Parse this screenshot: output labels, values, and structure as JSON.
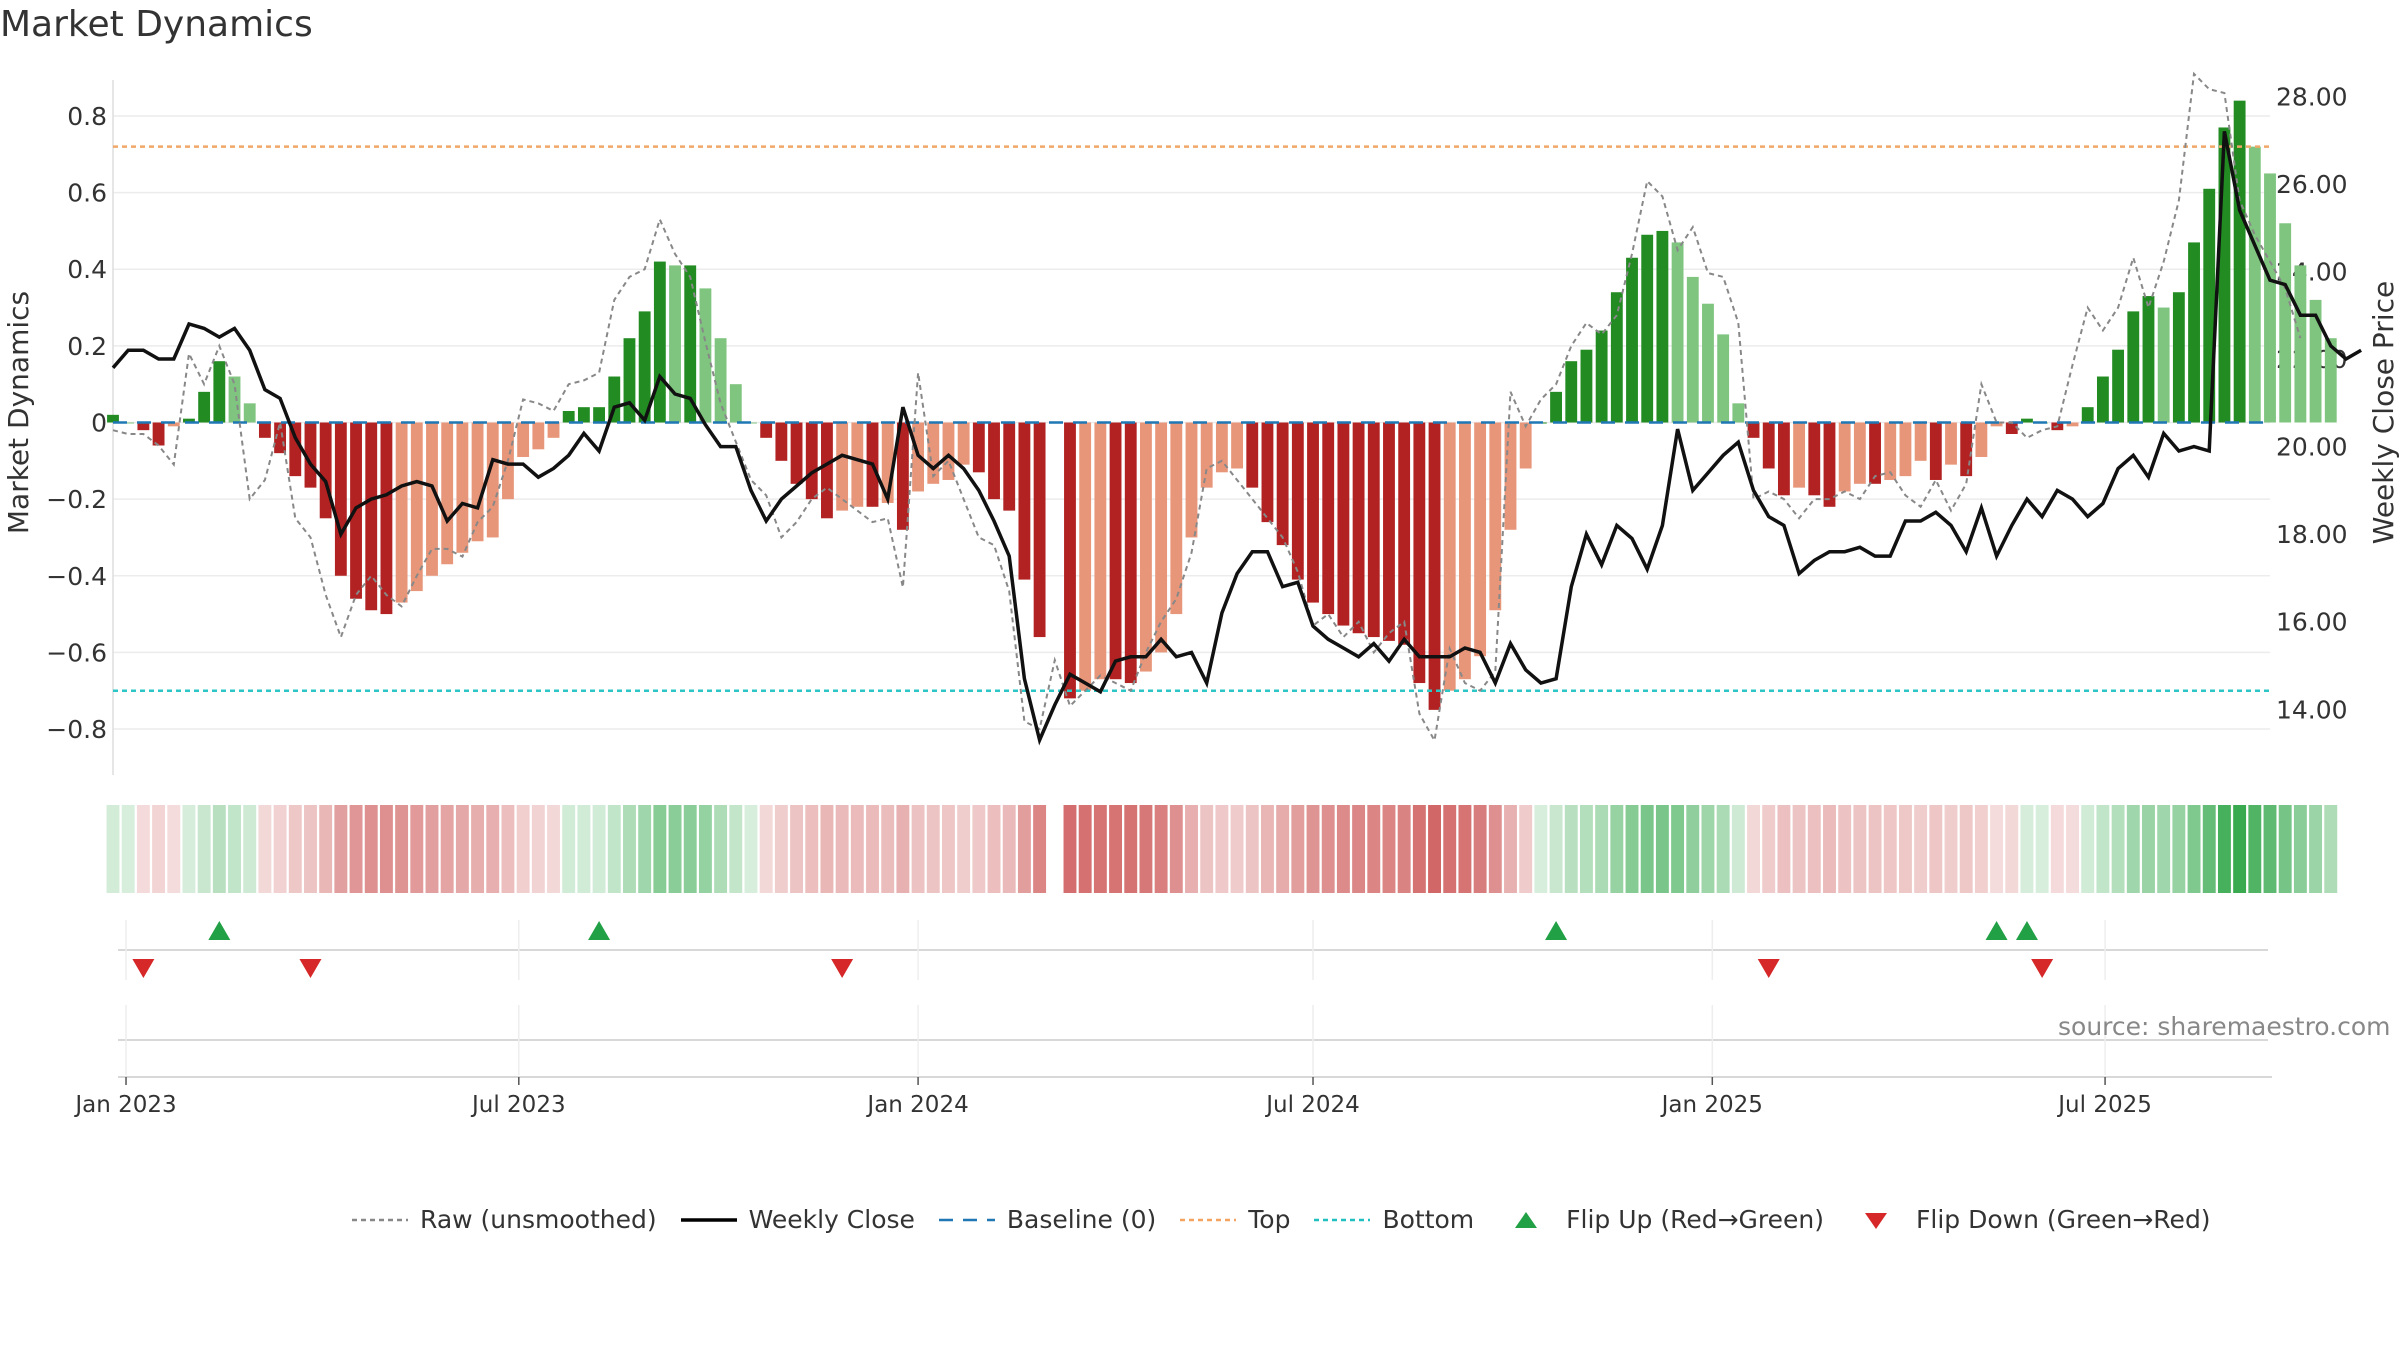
{
  "title": "Market Dynamics",
  "source": "source: sharemaestro.com",
  "axes": {
    "y_left_label": "Market Dynamics",
    "y_right_label": "Weekly Close Price",
    "y_left_ticks": [
      "0.8",
      "0.6",
      "0.4",
      "0.2",
      "0",
      "−0.2",
      "−0.4",
      "−0.6",
      "−0.8"
    ],
    "y_right_ticks": [
      "28.00",
      "26.00",
      "24.00",
      "22.00",
      "20.00",
      "18.00",
      "16.00",
      "14.00"
    ],
    "x_ticks": [
      "Jan 2023",
      "Jul 2023",
      "Jan 2024",
      "Jul 2024",
      "Jan 2025",
      "Jul 2025"
    ]
  },
  "legend": [
    {
      "label": "Raw (unsmoothed)",
      "style": "dotted",
      "color": "#888888"
    },
    {
      "label": "Weekly Close",
      "style": "solid",
      "color": "#000000"
    },
    {
      "label": "Baseline (0)",
      "style": "dashed",
      "color": "#1f77b4"
    },
    {
      "label": "Top",
      "style": "dotted",
      "color": "#f4a460"
    },
    {
      "label": "Bottom",
      "style": "dotted",
      "color": "#20c0c0"
    },
    {
      "label": "Flip Up (Red→Green)",
      "style": "tri-up",
      "color": "#22a045"
    },
    {
      "label": "Flip Down (Green→Red)",
      "style": "tri-down",
      "color": "#d62828"
    }
  ],
  "chart_data": {
    "type": "bar",
    "xlim": [
      "2022-12-26",
      "2025-09-15"
    ],
    "ylim_left": [
      -0.92,
      0.92
    ],
    "ylim_right": [
      12.5,
      28.6
    ],
    "top_line": 0.72,
    "bottom_line": -0.7,
    "baseline": 0,
    "colors": {
      "strong_green": "#228b22",
      "light_green": "#7fc47f",
      "strong_red": "#b22222",
      "light_red": "#e8967a"
    },
    "series": [
      {
        "name": "Market Dynamics",
        "start": "2022-12-26",
        "interval_days": 7,
        "values": [
          0.02,
          0.0,
          -0.02,
          -0.06,
          -0.01,
          0.01,
          0.08,
          0.16,
          0.12,
          0.05,
          -0.04,
          -0.08,
          -0.14,
          -0.17,
          -0.25,
          -0.4,
          -0.46,
          -0.49,
          -0.5,
          -0.47,
          -0.44,
          -0.4,
          -0.37,
          -0.34,
          -0.31,
          -0.3,
          -0.2,
          -0.09,
          -0.07,
          -0.04,
          0.03,
          0.04,
          0.04,
          0.12,
          0.22,
          0.29,
          0.42,
          0.41,
          0.41,
          0.35,
          0.22,
          0.1,
          0.0,
          -0.04,
          -0.1,
          -0.16,
          -0.2,
          -0.25,
          -0.23,
          -0.22,
          -0.22,
          -0.21,
          -0.28,
          -0.18,
          -0.16,
          -0.15,
          -0.11,
          -0.13,
          -0.2,
          -0.23,
          -0.41,
          -0.56,
          null,
          -0.72,
          -0.7,
          -0.67,
          -0.67,
          -0.68,
          -0.65,
          -0.6,
          -0.5,
          -0.3,
          -0.17,
          -0.13,
          -0.12,
          -0.17,
          -0.26,
          -0.32,
          -0.41,
          -0.47,
          -0.5,
          -0.53,
          -0.55,
          -0.56,
          -0.57,
          -0.58,
          -0.68,
          -0.75,
          -0.7,
          -0.67,
          -0.61,
          -0.49,
          -0.28,
          -0.12,
          0.0,
          0.08,
          0.16,
          0.19,
          0.24,
          0.34,
          0.43,
          0.49,
          0.5,
          0.47,
          0.38,
          0.31,
          0.23,
          0.05,
          -0.04,
          -0.12,
          -0.19,
          -0.17,
          -0.19,
          -0.22,
          -0.18,
          -0.16,
          -0.16,
          -0.15,
          -0.14,
          -0.1,
          -0.15,
          -0.11,
          -0.14,
          -0.09,
          -0.01,
          -0.03,
          0.01,
          0.0,
          -0.02,
          -0.01,
          0.04,
          0.12,
          0.19,
          0.29,
          0.33,
          0.3,
          0.34,
          0.47,
          0.61,
          0.77,
          0.84,
          0.72,
          0.65,
          0.52,
          0.41,
          0.32,
          0.22
        ]
      },
      {
        "name": "Raw (unsmoothed)",
        "start": "2022-12-26",
        "interval_days": 7,
        "values": [
          -0.02,
          -0.03,
          -0.03,
          -0.06,
          -0.11,
          0.18,
          0.1,
          0.2,
          0.1,
          -0.2,
          -0.15,
          0.0,
          -0.25,
          -0.3,
          -0.45,
          -0.56,
          -0.45,
          -0.4,
          -0.45,
          -0.48,
          -0.4,
          -0.33,
          -0.33,
          -0.35,
          -0.26,
          -0.22,
          -0.1,
          0.06,
          0.05,
          0.03,
          0.1,
          0.11,
          0.13,
          0.32,
          0.38,
          0.4,
          0.53,
          0.44,
          0.38,
          0.21,
          0.05,
          -0.05,
          -0.15,
          -0.19,
          -0.3,
          -0.26,
          -0.2,
          -0.17,
          -0.2,
          -0.23,
          -0.26,
          -0.25,
          -0.43,
          0.13,
          -0.14,
          -0.1,
          -0.2,
          -0.3,
          -0.32,
          -0.44,
          -0.78,
          -0.8,
          -0.62,
          -0.74,
          -0.7,
          -0.66,
          -0.68,
          -0.7,
          -0.6,
          -0.52,
          -0.46,
          -0.34,
          -0.12,
          -0.1,
          -0.15,
          -0.2,
          -0.25,
          -0.3,
          -0.39,
          -0.53,
          -0.5,
          -0.56,
          -0.52,
          -0.6,
          -0.55,
          -0.52,
          -0.76,
          -0.83,
          -0.59,
          -0.68,
          -0.7,
          -0.65,
          0.08,
          -0.01,
          0.06,
          0.1,
          0.2,
          0.26,
          0.23,
          0.28,
          0.44,
          0.63,
          0.59,
          0.45,
          0.51,
          0.39,
          0.38,
          0.26,
          -0.2,
          -0.18,
          -0.2,
          -0.25,
          -0.2,
          -0.2,
          -0.18,
          -0.2,
          -0.14,
          -0.13,
          -0.19,
          -0.22,
          -0.15,
          -0.23,
          -0.16,
          0.1,
          0.0,
          0.0,
          -0.04,
          -0.02,
          -0.01,
          0.15,
          0.3,
          0.24,
          0.3,
          0.43,
          0.3,
          0.42,
          0.58,
          0.91,
          0.87,
          0.86,
          0.58,
          0.49,
          0.42,
          0.35,
          0.22
        ]
      },
      {
        "name": "Weekly Close",
        "axis": "right",
        "start": "2022-12-26",
        "interval_days": 7,
        "values": [
          21.8,
          22.2,
          22.2,
          22.0,
          22.0,
          22.8,
          22.7,
          22.5,
          22.7,
          22.2,
          21.3,
          21.1,
          20.2,
          19.6,
          19.2,
          18.0,
          18.6,
          18.8,
          18.9,
          19.1,
          19.2,
          19.1,
          18.3,
          18.7,
          18.6,
          19.7,
          19.6,
          19.6,
          19.3,
          19.5,
          19.8,
          20.3,
          19.9,
          20.9,
          21.0,
          20.6,
          21.6,
          21.2,
          21.1,
          20.5,
          20.0,
          20.0,
          19.0,
          18.3,
          18.8,
          19.1,
          19.4,
          19.6,
          19.8,
          19.7,
          19.6,
          18.8,
          20.9,
          19.8,
          19.5,
          19.8,
          19.5,
          19.0,
          18.3,
          17.5,
          14.7,
          13.3,
          14.1,
          14.8,
          14.6,
          14.4,
          15.1,
          15.2,
          15.2,
          15.6,
          15.2,
          15.3,
          14.6,
          16.2,
          17.1,
          17.6,
          17.6,
          16.8,
          16.9,
          15.9,
          15.6,
          15.4,
          15.2,
          15.5,
          15.1,
          15.6,
          15.2,
          15.2,
          15.2,
          15.4,
          15.3,
          14.6,
          15.5,
          14.9,
          14.6,
          14.7,
          16.8,
          18.0,
          17.3,
          18.2,
          17.9,
          17.2,
          18.2,
          20.4,
          19.0,
          19.4,
          19.8,
          20.1,
          19.0,
          18.4,
          18.2,
          17.1,
          17.4,
          17.6,
          17.6,
          17.7,
          17.5,
          17.5,
          18.3,
          18.3,
          18.5,
          18.2,
          17.6,
          18.6,
          17.5,
          18.2,
          18.8,
          18.4,
          19.0,
          18.8,
          18.4,
          18.7,
          19.5,
          19.8,
          19.3,
          20.3,
          19.9,
          20.0,
          19.9,
          27.2,
          25.4,
          24.6,
          23.8,
          23.7,
          23.0,
          23.0,
          22.3,
          22.0,
          22.2
        ]
      }
    ],
    "flip_up_dates": [
      "2023-02-13",
      "2023-08-07",
      "2024-10-21",
      "2025-05-12",
      "2025-05-26"
    ],
    "flip_down_dates": [
      "2023-01-09",
      "2023-03-27",
      "2023-11-27",
      "2025-01-27",
      "2025-06-02"
    ]
  }
}
